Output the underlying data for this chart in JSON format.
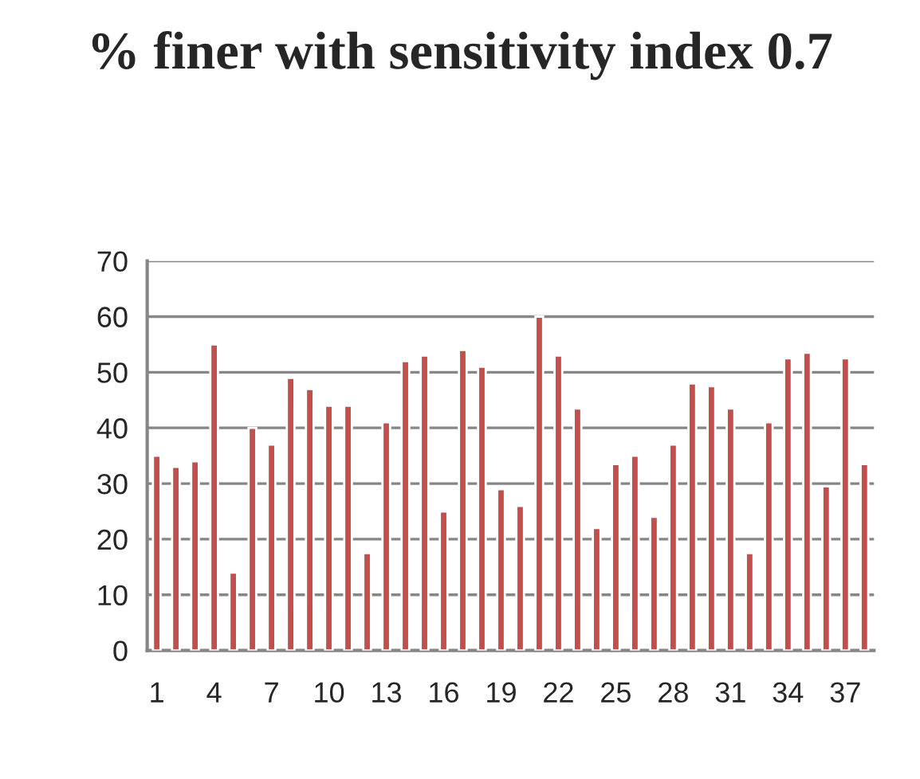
{
  "chart_data": {
    "type": "bar",
    "title": "% finer with sensitivity index 0.7",
    "categories": [
      "1",
      null,
      null,
      "4",
      null,
      null,
      "7",
      null,
      null,
      "10",
      null,
      null,
      "13",
      null,
      null,
      "16",
      null,
      null,
      "19",
      null,
      null,
      "22",
      null,
      null,
      "25",
      null,
      null,
      "28",
      null,
      null,
      "31",
      null,
      null,
      "34",
      null,
      null,
      "37",
      null
    ],
    "values": [
      35,
      33,
      34,
      55,
      14,
      40,
      37,
      49,
      47,
      44,
      44,
      17.5,
      41,
      52,
      53,
      25,
      54,
      51,
      29,
      26,
      60,
      53,
      43.5,
      22,
      33.5,
      35,
      24,
      37,
      48,
      47.5,
      43.5,
      17.5,
      41,
      52.5,
      53.5,
      29.5,
      52.5,
      33.5
    ],
    "color": "#c0504d",
    "ylim": [
      0,
      70
    ],
    "yticks": [
      0,
      10,
      20,
      30,
      40,
      50,
      60,
      70
    ],
    "grid": "y",
    "legend": false
  }
}
